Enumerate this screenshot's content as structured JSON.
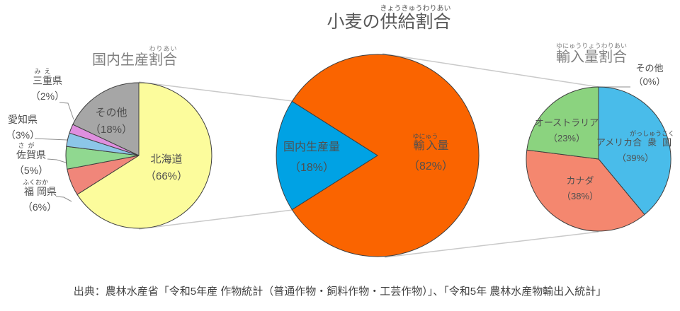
{
  "page": {
    "title": {
      "head": "小麦の",
      "ruby_base": "供給割合",
      "ruby": "きょうきゅうわりあい"
    },
    "source": "出典：農林水産省「令和5年産 作物統計（普通作物・飼料作物・工芸作物）」、「令和5年 農林水産物輸出入統計」"
  },
  "chart_data": [
    {
      "id": "domestic_production_share",
      "type": "pie",
      "title": "国内生産割合",
      "title_head": "国内生産",
      "title_ruby_base": "割合",
      "title_ruby": "わりあい",
      "start_angle": 0,
      "legend": "none",
      "slices": [
        {
          "label": "北海道",
          "value": 66,
          "pct": "（66%）",
          "color": "#FCFC9C"
        },
        {
          "label": "福岡県",
          "ruby_base": "福岡",
          "ruby": "ふくおか",
          "label_rest": "県",
          "value": 6,
          "pct": "（6%）",
          "color": "#F0867A"
        },
        {
          "label": "佐賀県",
          "ruby_base": "佐賀",
          "ruby": "さが",
          "label_rest": "県",
          "value": 5,
          "pct": "（5%）",
          "color": "#90D890"
        },
        {
          "label": "愛知県",
          "value": 3,
          "pct": "（3%）",
          "color": "#8CC6E8"
        },
        {
          "label": "三重県",
          "ruby_base": "三重",
          "ruby": "みえ",
          "label_rest": "県",
          "value": 2,
          "pct": "（2%）",
          "color": "#DF8FDF"
        },
        {
          "label": "その他",
          "value": 18,
          "pct": "（18%）",
          "color": "#A6A6A6"
        }
      ]
    },
    {
      "id": "supply_share",
      "type": "pie",
      "title": "小麦の供給割合",
      "start_angle": 302.4,
      "legend": "none",
      "slices": [
        {
          "label": "輸入量",
          "ruby_base": "輸入",
          "ruby": "ゆにゅう",
          "label_rest": "量",
          "value": 82,
          "pct": "（82%）",
          "color": "#FA6400"
        },
        {
          "label": "国内生産量",
          "value": 18,
          "pct": "（18%）",
          "color": "#00A2E4"
        }
      ]
    },
    {
      "id": "import_share",
      "type": "pie",
      "title": "輸入量割合",
      "title_ruby_base": "輸入量割合",
      "title_ruby": "ゆにゅうりょうわりあい",
      "start_angle": 0,
      "legend": "none",
      "slices": [
        {
          "label": "アメリカ合衆国",
          "label_head": "アメリカ",
          "ruby_base": "合衆国",
          "ruby": "がっしゅうこく",
          "value": 39,
          "pct": "（39%）",
          "color": "#49BCEA"
        },
        {
          "label": "カナダ",
          "value": 38,
          "pct": "（38%）",
          "color": "#F4876F"
        },
        {
          "label": "オーストラリア",
          "value": 23,
          "pct": "（23%）",
          "color": "#8BD37F"
        },
        {
          "label": "その他",
          "value": 0,
          "pct": "（0%）",
          "color": "#49BCEA"
        }
      ]
    }
  ]
}
